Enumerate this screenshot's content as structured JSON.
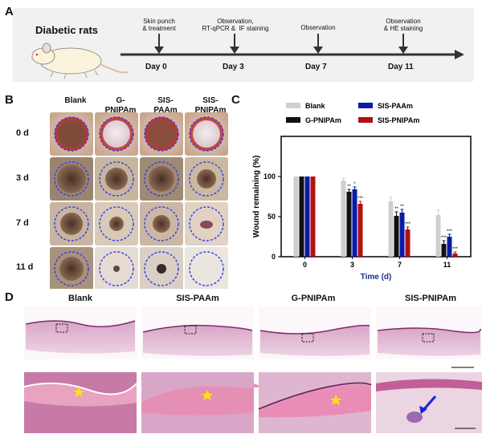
{
  "panels": {
    "A": "A",
    "B": "B",
    "C": "C",
    "D": "D"
  },
  "timeline": {
    "subject": "Diabetic rats",
    "events": [
      {
        "day": "Day 0",
        "label": "Skin punch\n& treatment"
      },
      {
        "day": "Day 3",
        "label": "Observation,\nRT-qPCR &  IF staining"
      },
      {
        "day": "Day 7",
        "label": "Observation"
      },
      {
        "day": "Day 11",
        "label": "Observation\n& HE staining"
      }
    ]
  },
  "photos": {
    "columns": [
      "Blank",
      "G-\nPNIPAm",
      "SIS-\nPAAm",
      "SIS-\nPNIPAm"
    ],
    "rows": [
      "0 d",
      "3 d",
      "7 d",
      "11 d"
    ]
  },
  "histology": {
    "titles": [
      "Blank",
      "SIS-PAAm",
      "G-PNIPAm",
      "SIS-PNIPAm"
    ]
  },
  "colors": {
    "blank": "#cfcfcf",
    "g_pnipam": "#111111",
    "sis_paam": "#0b1aa8",
    "sis_pnipam": "#b01212",
    "axis_title": "#1b2b8f"
  },
  "chart_data": {
    "type": "bar",
    "categories": [
      "0",
      "3",
      "7",
      "11"
    ],
    "xlabel": "Time (d)",
    "ylabel": "Wound remaining (%)",
    "ylim": [
      0,
      150
    ],
    "yticks": [
      0,
      50,
      100
    ],
    "series": [
      {
        "name": "Blank",
        "values": [
          100,
          95,
          69,
          52
        ],
        "errors": [
          0,
          3,
          5,
          6
        ],
        "sig": [
          "",
          "",
          "",
          ""
        ]
      },
      {
        "name": "G-PNIPAm",
        "values": [
          100,
          81,
          51,
          16
        ],
        "errors": [
          0,
          3,
          5,
          4
        ],
        "sig": [
          "",
          "**",
          "**",
          "***"
        ]
      },
      {
        "name": "SIS-PAAm",
        "values": [
          100,
          84,
          55,
          25
        ],
        "errors": [
          0,
          3,
          4,
          3
        ],
        "sig": [
          "",
          "*",
          "**",
          "***"
        ]
      },
      {
        "name": "SIS-PNIPAm",
        "values": [
          100,
          66,
          34,
          4
        ],
        "errors": [
          0,
          3,
          3,
          2
        ],
        "sig": [
          "",
          "***",
          "***",
          "***"
        ]
      }
    ],
    "legend": [
      {
        "name": "Blank",
        "color": "#cfcfcf"
      },
      {
        "name": "SIS-PAAm",
        "color": "#0b1aa8"
      },
      {
        "name": "G-PNIPAm",
        "color": "#111111"
      },
      {
        "name": "SIS-PNIPAm",
        "color": "#b01212"
      }
    ]
  }
}
